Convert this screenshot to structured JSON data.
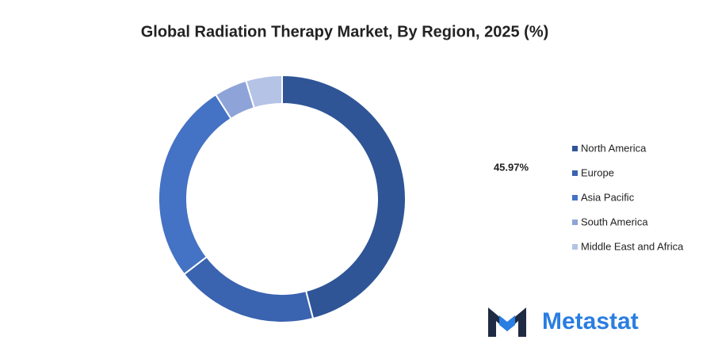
{
  "chart_data": {
    "type": "donut",
    "title": "Global Radiation Therapy Market, By Region, 2025 (%)",
    "categories": [
      "North America",
      "Europe",
      "Asia Pacific",
      "South America",
      "Middle East and Africa"
    ],
    "values": [
      45.97,
      18.6,
      26.4,
      4.3,
      4.73
    ],
    "value_labels": [
      "45.97%",
      null,
      null,
      null,
      null
    ],
    "colors": [
      "#2f5597",
      "#3a63b0",
      "#4472c4",
      "#8ea3d8",
      "#b4c3e6"
    ],
    "legend": "right"
  },
  "logo": {
    "text": "Metastat"
  }
}
